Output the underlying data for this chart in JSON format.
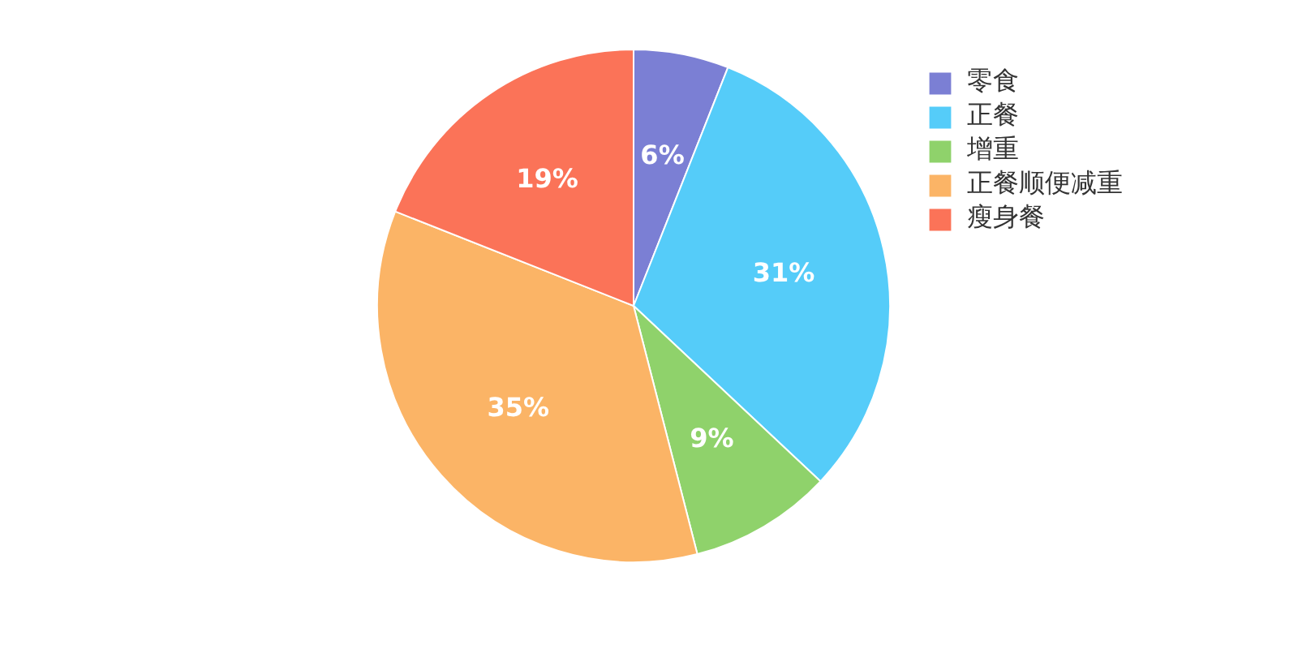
{
  "chart_data": {
    "type": "pie",
    "categories": [
      "零食",
      "正餐",
      "增重",
      "正餐顺便减重",
      "瘦身餐"
    ],
    "values": [
      6,
      31,
      9,
      35,
      19
    ],
    "value_labels": [
      "6%",
      "31%",
      "9%",
      "35%",
      "19%"
    ],
    "colors": [
      "#7b7fd4",
      "#55ccf9",
      "#8fd26b",
      "#fbb466",
      "#fb7358"
    ],
    "legend": "top right"
  }
}
